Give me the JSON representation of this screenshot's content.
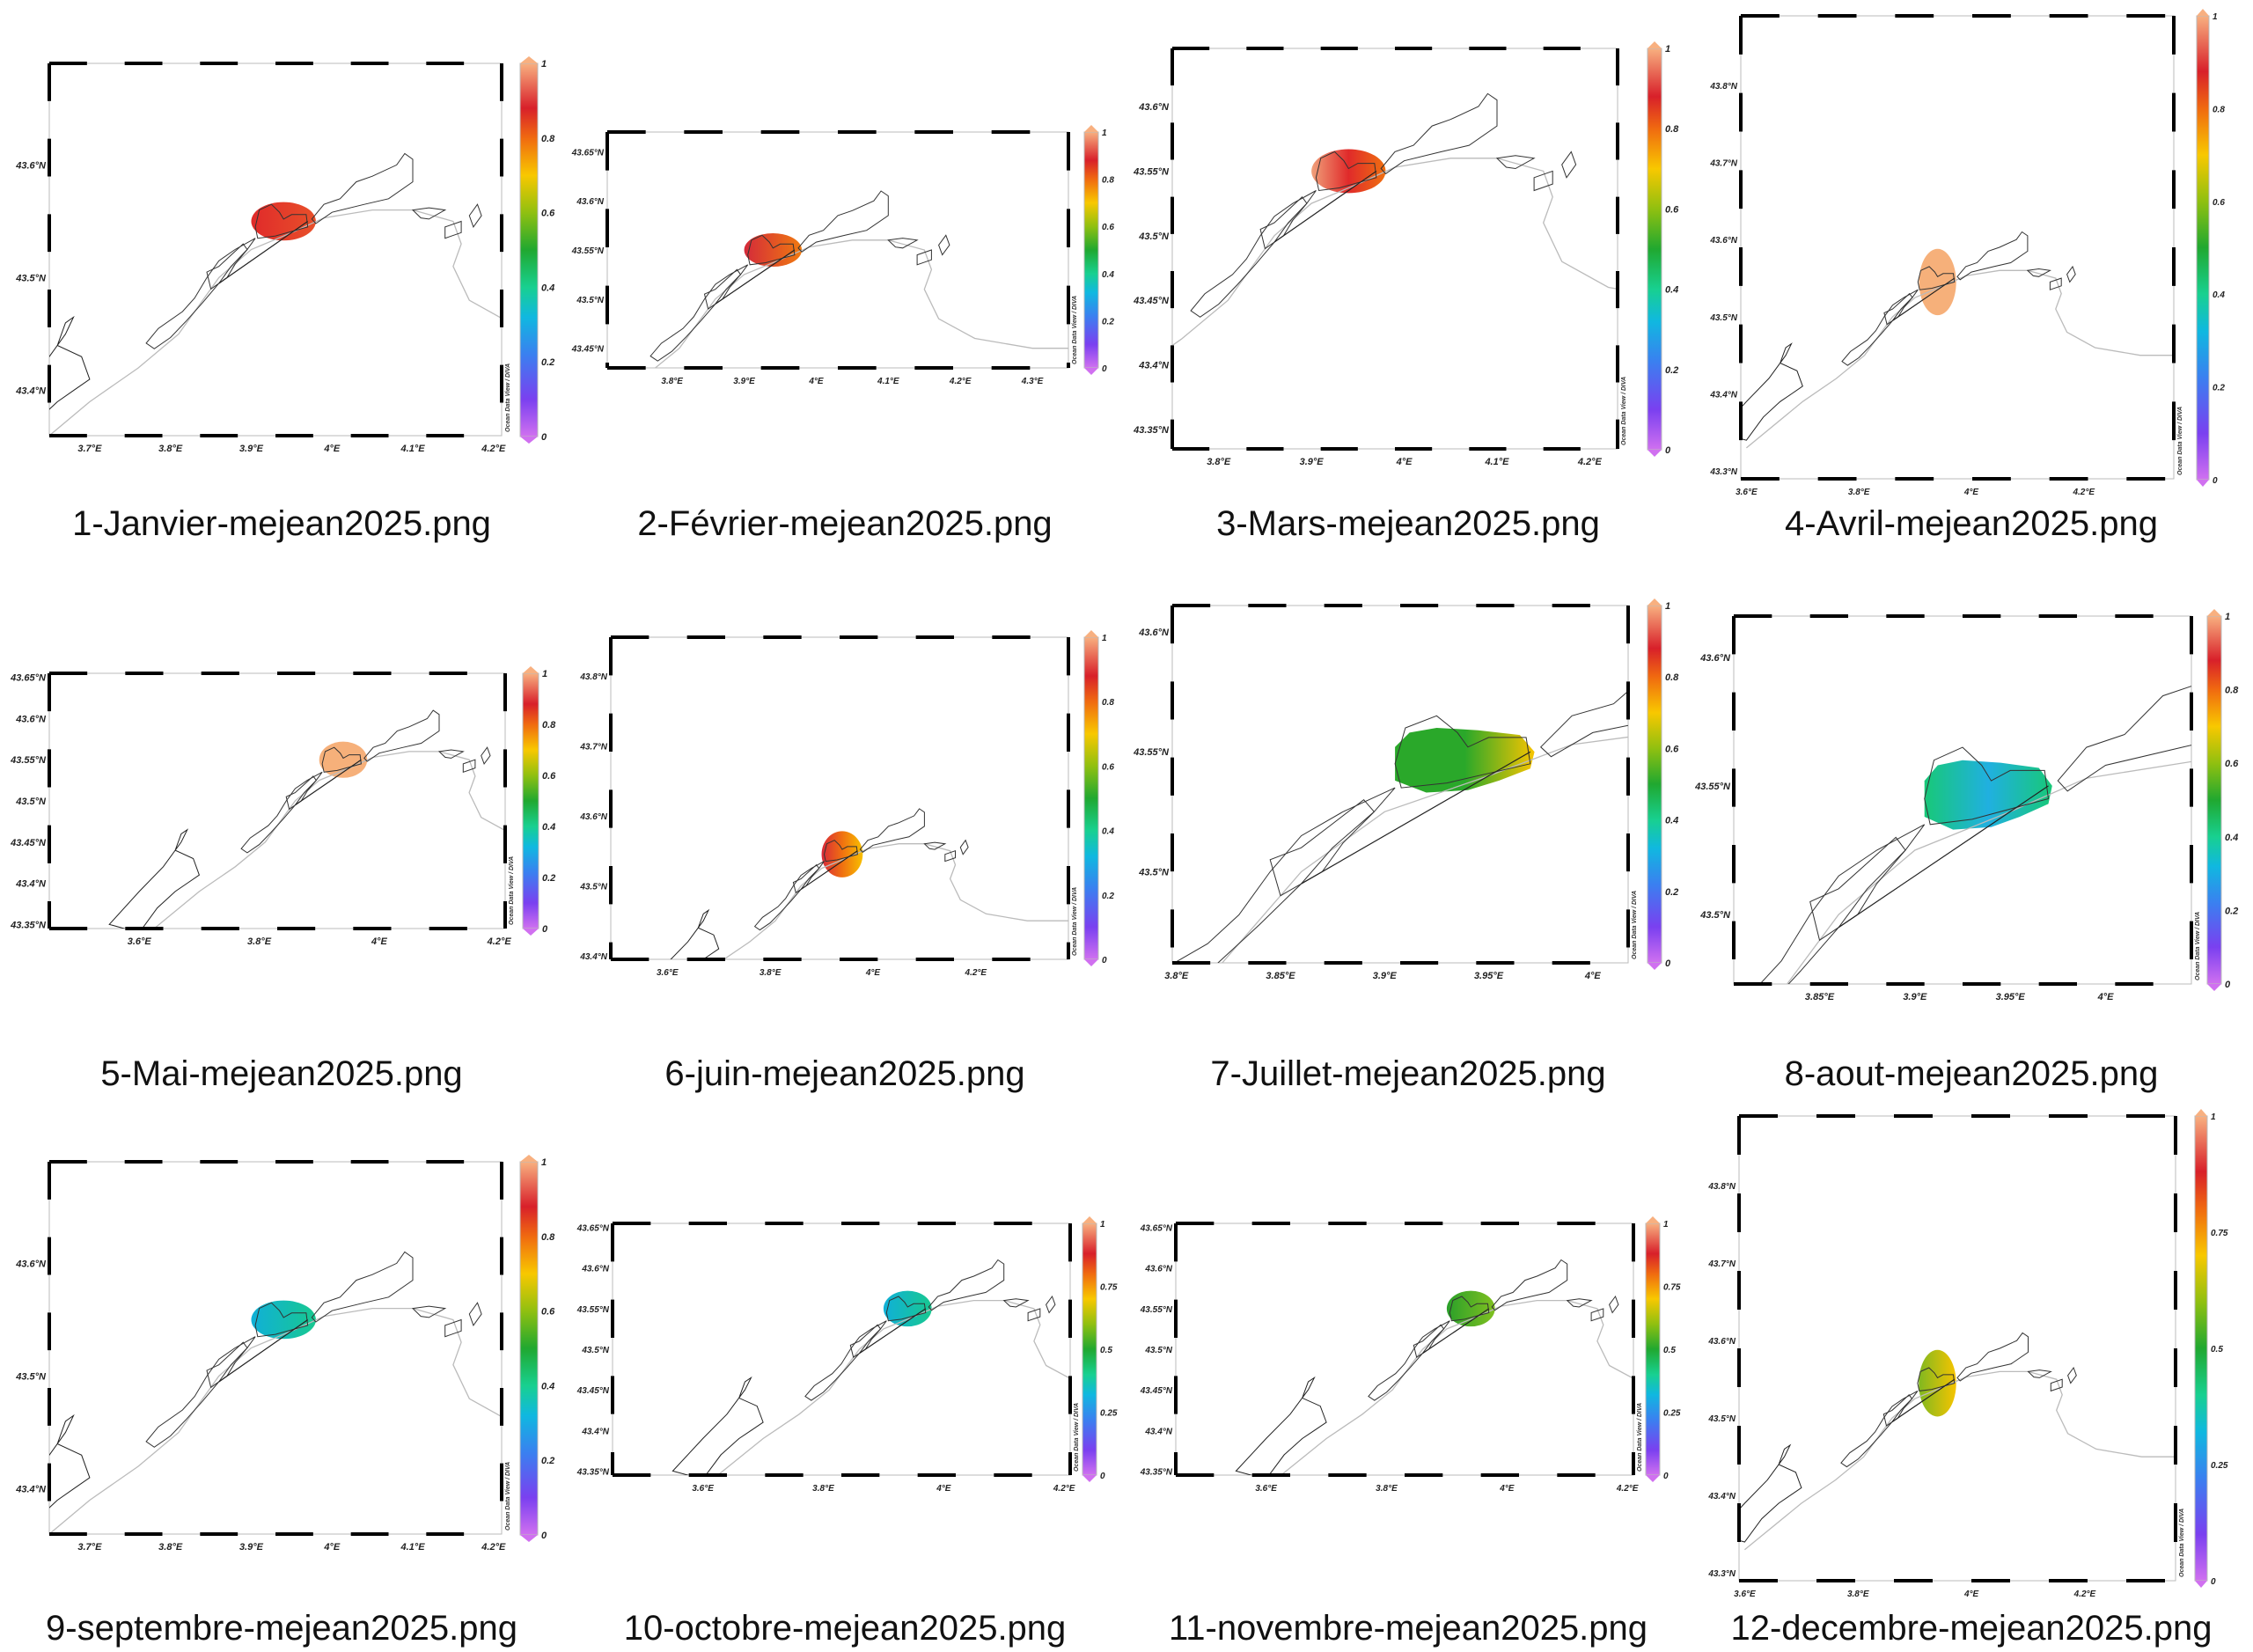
{
  "chart_data": [
    {
      "type": "heatmap",
      "caption": "1-Janvier-mejean2025.png",
      "xticks": [
        "3.7°E",
        "3.8°E",
        "3.9°E",
        "4°E",
        "4.1°E",
        "4.2°E"
      ],
      "yticks": [
        "43.6°N",
        "43.5°N",
        "43.4°N"
      ],
      "xlim": [
        3.65,
        4.21
      ],
      "ylim": [
        43.36,
        43.69
      ],
      "xtick_values": [
        3.7,
        3.8,
        3.9,
        4.0,
        4.1,
        4.2
      ],
      "ytick_values": [
        43.6,
        43.5,
        43.4
      ],
      "colorbar": {
        "min": 0,
        "max": 1,
        "ticks": [
          "0",
          "0.2",
          "0.4",
          "0.6",
          "0.8",
          "1"
        ]
      },
      "blob": {
        "shape": "ellipse",
        "center": [
          3.94,
          43.55
        ],
        "colors": [
          "#e02a2a",
          "#e8502a"
        ],
        "value_range": [
          0.82,
          0.9
        ]
      },
      "credit": "Ocean Data View / DIVA"
    },
    {
      "type": "heatmap",
      "caption": "2-Février-mejean2025.png",
      "xticks": [
        "3.8°E",
        "3.9°E",
        "4°E",
        "4.1°E",
        "4.2°E",
        "4.3°E"
      ],
      "yticks": [
        "43.65°N",
        "43.6°N",
        "43.55°N",
        "43.5°N",
        "43.45°N"
      ],
      "xlim": [
        3.71,
        4.35
      ],
      "ylim": [
        43.43,
        43.67
      ],
      "xtick_values": [
        3.8,
        3.9,
        4.0,
        4.1,
        4.2,
        4.3
      ],
      "ytick_values": [
        43.65,
        43.6,
        43.55,
        43.5,
        43.45
      ],
      "colorbar": {
        "min": 0,
        "max": 1,
        "ticks": [
          "0",
          "0.2",
          "0.4",
          "0.6",
          "0.8",
          "1"
        ]
      },
      "blob": {
        "shape": "ellipse",
        "center": [
          3.94,
          43.55
        ],
        "colors": [
          "#d42a3a",
          "#f07a10"
        ],
        "value_range": [
          0.75,
          0.9
        ]
      },
      "credit": "Ocean Data View / DIVA"
    },
    {
      "type": "heatmap",
      "caption": "3-Mars-mejean2025.png",
      "xticks": [
        "3.8°E",
        "3.9°E",
        "4°E",
        "4.1°E",
        "4.2°E"
      ],
      "yticks": [
        "43.6°N",
        "43.55°N",
        "43.5°N",
        "43.45°N",
        "43.4°N",
        "43.35°N"
      ],
      "xlim": [
        3.75,
        4.23
      ],
      "ylim": [
        43.335,
        43.645
      ],
      "xtick_values": [
        3.8,
        3.9,
        4.0,
        4.1,
        4.2
      ],
      "ytick_values": [
        43.6,
        43.55,
        43.5,
        43.45,
        43.4,
        43.35
      ],
      "colorbar": {
        "min": 0,
        "max": 1,
        "ticks": [
          "0",
          "0.2",
          "0.4",
          "0.6",
          "0.8",
          "1"
        ]
      },
      "blob": {
        "shape": "ellipse",
        "center": [
          3.94,
          43.55
        ],
        "colors": [
          "#f0a07a",
          "#e02a2a",
          "#f07010"
        ],
        "value_range": [
          0.78,
          0.98
        ]
      },
      "credit": "Ocean Data View / DIVA"
    },
    {
      "type": "heatmap",
      "caption": "4-Avril-mejean2025.png",
      "xticks": [
        "3.6°E",
        "3.8°E",
        "4°E",
        "4.2°E"
      ],
      "yticks": [
        "43.8°N",
        "43.7°N",
        "43.6°N",
        "43.5°N",
        "43.4°N",
        "43.3°N"
      ],
      "xlim": [
        3.59,
        4.36
      ],
      "ylim": [
        43.29,
        43.89
      ],
      "xtick_values": [
        3.6,
        3.8,
        4.0,
        4.2
      ],
      "ytick_values": [
        43.8,
        43.7,
        43.6,
        43.5,
        43.4,
        43.3
      ],
      "colorbar": {
        "min": 0,
        "max": 1,
        "ticks": [
          "0",
          "0.2",
          "0.4",
          "0.6",
          "0.8",
          "1"
        ]
      },
      "blob": {
        "shape": "ellipse",
        "center": [
          3.94,
          43.545
        ],
        "colors": [
          "#f6b07a"
        ],
        "value_range": [
          1,
          1
        ]
      },
      "credit": "Ocean Data View / DIVA"
    },
    {
      "type": "heatmap",
      "caption": "5-Mai-mejean2025.png",
      "xticks": [
        "3.6°E",
        "3.8°E",
        "4°E",
        "4.2°E"
      ],
      "yticks": [
        "43.65°N",
        "43.6°N",
        "43.55°N",
        "43.5°N",
        "43.45°N",
        "43.4°N",
        "43.35°N"
      ],
      "xlim": [
        3.45,
        4.21
      ],
      "ylim": [
        43.345,
        43.655
      ],
      "xtick_values": [
        3.6,
        3.8,
        4.0,
        4.2
      ],
      "ytick_values": [
        43.65,
        43.6,
        43.55,
        43.5,
        43.45,
        43.4,
        43.35
      ],
      "colorbar": {
        "min": 0,
        "max": 1,
        "ticks": [
          "0",
          "0.2",
          "0.4",
          "0.6",
          "0.8",
          "1"
        ]
      },
      "blob": {
        "shape": "ellipse",
        "center": [
          3.94,
          43.55
        ],
        "colors": [
          "#f6b07a"
        ],
        "value_range": [
          1,
          1
        ]
      },
      "credit": "Ocean Data View / DIVA"
    },
    {
      "type": "heatmap",
      "caption": "6-juin-mejean2025.png",
      "xticks": [
        "3.6°E",
        "3.8°E",
        "4°E",
        "4.2°E"
      ],
      "yticks": [
        "43.8°N",
        "43.7°N",
        "43.6°N",
        "43.5°N",
        "43.4°N"
      ],
      "xlim": [
        3.49,
        4.38
      ],
      "ylim": [
        43.395,
        43.855
      ],
      "xtick_values": [
        3.6,
        3.8,
        4.0,
        4.2
      ],
      "ytick_values": [
        43.8,
        43.7,
        43.6,
        43.5,
        43.4
      ],
      "colorbar": {
        "min": 0,
        "max": 1,
        "ticks": [
          "0",
          "0.2",
          "0.4",
          "0.6",
          "0.8",
          "1"
        ]
      },
      "blob": {
        "shape": "ellipse",
        "center": [
          3.94,
          43.545
        ],
        "colors": [
          "#d8283a",
          "#f07010",
          "#f8c000"
        ],
        "value_range": [
          0.65,
          0.9
        ]
      },
      "credit": "Ocean Data View / DIVA"
    },
    {
      "type": "heatmap",
      "caption": "7-Juillet-mejean2025.png",
      "xticks": [
        "3.8°E",
        "3.85°E",
        "3.9°E",
        "3.95°E",
        "4°E"
      ],
      "yticks": [
        "43.6°N",
        "43.55°N",
        "43.5°N"
      ],
      "xlim": [
        3.798,
        4.017
      ],
      "ylim": [
        43.462,
        43.611
      ],
      "xtick_values": [
        3.8,
        3.85,
        3.9,
        3.95,
        4.0
      ],
      "ytick_values": [
        43.6,
        43.55,
        43.5
      ],
      "colorbar": {
        "min": 0,
        "max": 1,
        "ticks": [
          "0",
          "0.2",
          "0.4",
          "0.6",
          "0.8",
          "1"
        ]
      },
      "blob": {
        "shape": "lagoon",
        "center": [
          3.94,
          43.55
        ],
        "colors": [
          "#2aa82a",
          "#2aa82a",
          "#f8c400"
        ],
        "value_range": [
          0.5,
          0.68
        ]
      },
      "credit": "Ocean Data View / DIVA"
    },
    {
      "type": "heatmap",
      "caption": "8-aout-mejean2025.png",
      "xticks": [
        "3.85°E",
        "3.9°E",
        "3.95°E",
        "4°E"
      ],
      "yticks": [
        "43.6°N",
        "43.55°N",
        "43.5°N"
      ],
      "xlim": [
        3.805,
        4.045
      ],
      "ylim": [
        43.473,
        43.616
      ],
      "xtick_values": [
        3.85,
        3.9,
        3.95,
        4.0
      ],
      "ytick_values": [
        43.6,
        43.55,
        43.5
      ],
      "colorbar": {
        "min": 0,
        "max": 1,
        "ticks": [
          "0",
          "0.2",
          "0.4",
          "0.6",
          "0.8",
          "1"
        ]
      },
      "blob": {
        "shape": "lagoon",
        "center": [
          3.94,
          43.55
        ],
        "colors": [
          "#18c878",
          "#20b0e0",
          "#18c878"
        ],
        "value_range": [
          0.28,
          0.4
        ]
      },
      "credit": "Ocean Data View / DIVA"
    },
    {
      "type": "heatmap",
      "caption": "9-septembre-mejean2025.png",
      "xticks": [
        "3.7°E",
        "3.8°E",
        "3.9°E",
        "4°E",
        "4.1°E",
        "4.2°E"
      ],
      "yticks": [
        "43.6°N",
        "43.5°N",
        "43.4°N"
      ],
      "xlim": [
        3.65,
        4.21
      ],
      "ylim": [
        43.36,
        43.69
      ],
      "xtick_values": [
        3.7,
        3.8,
        3.9,
        4.0,
        4.1,
        4.2
      ],
      "ytick_values": [
        43.6,
        43.5,
        43.4
      ],
      "colorbar": {
        "min": 0,
        "max": 1,
        "ticks": [
          "0",
          "0.2",
          "0.4",
          "0.6",
          "0.8",
          "1"
        ]
      },
      "blob": {
        "shape": "ellipse",
        "center": [
          3.94,
          43.55
        ],
        "colors": [
          "#10b0d8",
          "#18c890"
        ],
        "value_range": [
          0.27,
          0.4
        ]
      },
      "credit": "Ocean Data View / DIVA"
    },
    {
      "type": "heatmap",
      "caption": "10-octobre-mejean2025.png",
      "xticks": [
        "3.6°E",
        "3.8°E",
        "4°E",
        "4.2°E"
      ],
      "yticks": [
        "43.65°N",
        "43.6°N",
        "43.55°N",
        "43.5°N",
        "43.45°N",
        "43.4°N",
        "43.35°N"
      ],
      "xlim": [
        3.45,
        4.21
      ],
      "ylim": [
        43.345,
        43.655
      ],
      "xtick_values": [
        3.6,
        3.8,
        4.0,
        4.2
      ],
      "ytick_values": [
        43.65,
        43.6,
        43.55,
        43.5,
        43.45,
        43.4,
        43.35
      ],
      "colorbar": {
        "min": 0,
        "max": 1,
        "ticks": [
          "0",
          "0.25",
          "0.5",
          "0.75",
          "1"
        ]
      },
      "blob": {
        "shape": "ellipse",
        "center": [
          3.94,
          43.55
        ],
        "colors": [
          "#10b0d8",
          "#18c890"
        ],
        "value_range": [
          0.27,
          0.4
        ]
      },
      "credit": "Ocean Data View / DIVA"
    },
    {
      "type": "heatmap",
      "caption": "11-novembre-mejean2025.png",
      "xticks": [
        "3.6°E",
        "3.8°E",
        "4°E",
        "4.2°E"
      ],
      "yticks": [
        "43.65°N",
        "43.6°N",
        "43.55°N",
        "43.5°N",
        "43.45°N",
        "43.4°N",
        "43.35°N"
      ],
      "xlim": [
        3.45,
        4.21
      ],
      "ylim": [
        43.345,
        43.655
      ],
      "xtick_values": [
        3.6,
        3.8,
        4.0,
        4.2
      ],
      "ytick_values": [
        43.65,
        43.6,
        43.55,
        43.5,
        43.45,
        43.4,
        43.35
      ],
      "colorbar": {
        "min": 0,
        "max": 1,
        "ticks": [
          "0",
          "0.25",
          "0.5",
          "0.75",
          "1"
        ]
      },
      "blob": {
        "shape": "ellipse",
        "center": [
          3.94,
          43.55
        ],
        "colors": [
          "#2aa02a",
          "#80c020"
        ],
        "value_range": [
          0.5,
          0.6
        ]
      },
      "credit": "Ocean Data View / DIVA"
    },
    {
      "type": "heatmap",
      "caption": "12-decembre-mejean2025.png",
      "xticks": [
        "3.6°E",
        "3.8°E",
        "4°E",
        "4.2°E"
      ],
      "yticks": [
        "43.8°N",
        "43.7°N",
        "43.6°N",
        "43.5°N",
        "43.4°N",
        "43.3°N"
      ],
      "xlim": [
        3.59,
        4.36
      ],
      "ylim": [
        43.29,
        43.89
      ],
      "xtick_values": [
        3.6,
        3.8,
        4.0,
        4.2
      ],
      "ytick_values": [
        43.8,
        43.7,
        43.6,
        43.5,
        43.4,
        43.3
      ],
      "colorbar": {
        "min": 0,
        "max": 1,
        "ticks": [
          "0",
          "0.25",
          "0.5",
          "0.75",
          "1"
        ]
      },
      "blob": {
        "shape": "ellipse",
        "center": [
          3.94,
          43.545
        ],
        "colors": [
          "#80b820",
          "#f6c400"
        ],
        "value_range": [
          0.58,
          0.7
        ]
      },
      "credit": "Ocean Data View / DIVA"
    }
  ]
}
